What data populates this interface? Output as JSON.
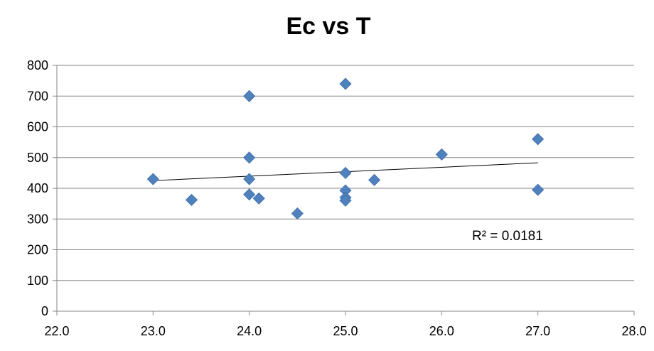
{
  "chart_data": {
    "type": "scatter",
    "title": "Ec vs T",
    "xlabel": "",
    "ylabel": "",
    "xlim": [
      22.0,
      28.0
    ],
    "ylim": [
      0,
      800
    ],
    "x_ticks": [
      "22.0",
      "23.0",
      "24.0",
      "25.0",
      "26.0",
      "27.0",
      "28.0"
    ],
    "y_ticks": [
      "0",
      "100",
      "200",
      "300",
      "400",
      "500",
      "600",
      "700",
      "800"
    ],
    "grid": "horizontal",
    "legend": "none",
    "marker": "diamond",
    "marker_color": "#4F81BD",
    "series": [
      {
        "points": [
          {
            "x": 23.0,
            "y": 430
          },
          {
            "x": 23.4,
            "y": 362
          },
          {
            "x": 24.0,
            "y": 700
          },
          {
            "x": 24.0,
            "y": 500
          },
          {
            "x": 24.0,
            "y": 430
          },
          {
            "x": 24.0,
            "y": 380
          },
          {
            "x": 24.1,
            "y": 367
          },
          {
            "x": 24.5,
            "y": 318
          },
          {
            "x": 25.0,
            "y": 740
          },
          {
            "x": 25.0,
            "y": 450
          },
          {
            "x": 25.0,
            "y": 393
          },
          {
            "x": 25.0,
            "y": 370
          },
          {
            "x": 25.0,
            "y": 360
          },
          {
            "x": 25.3,
            "y": 427
          },
          {
            "x": 26.0,
            "y": 510
          },
          {
            "x": 27.0,
            "y": 560
          },
          {
            "x": 27.0,
            "y": 395
          }
        ]
      }
    ],
    "trendline": {
      "type": "linear",
      "x_start": 23.0,
      "y_start": 425,
      "x_end": 27.0,
      "y_end": 483,
      "color": "#000000"
    },
    "annotation": "R² = 0.0181"
  }
}
